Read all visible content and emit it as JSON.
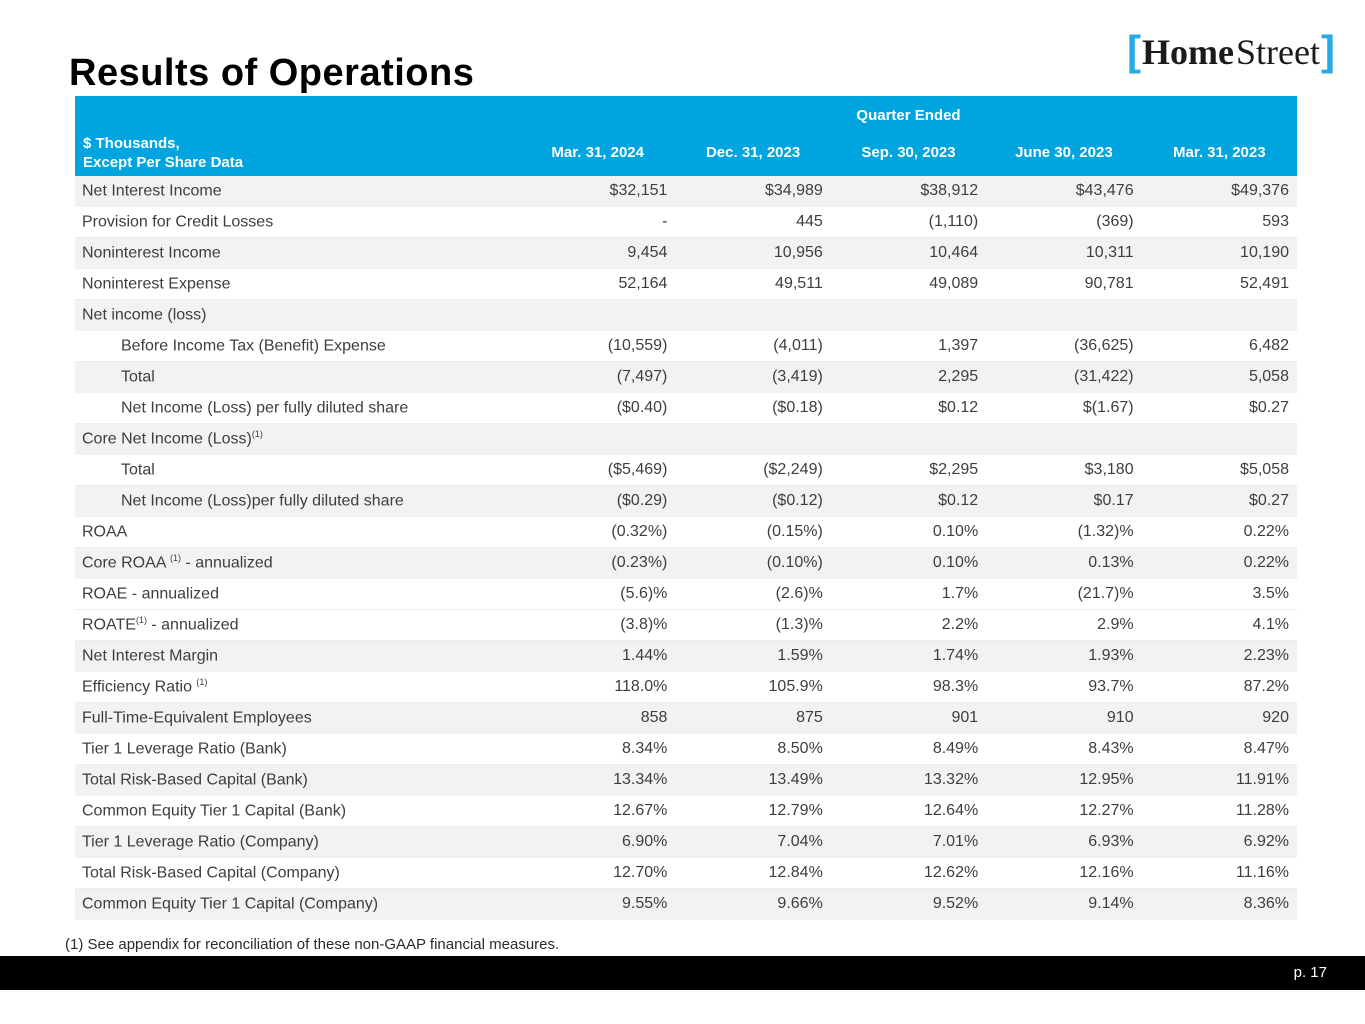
{
  "page": {
    "title": "Results of Operations",
    "footnote": "(1) See appendix for reconciliation of these non-GAAP financial measures.",
    "page_number": "p. 17"
  },
  "logo": {
    "bracket_left": "[",
    "home": "Home",
    "street": "Street",
    "bracket_right": "]"
  },
  "colors": {
    "header_blue": "#00A5E0",
    "logo_cyan": "#29ABE2",
    "row_shade": "#F2F2F2",
    "footer_black": "#000000"
  },
  "table": {
    "group_header": "Quarter Ended",
    "desc_line1": "$ Thousands,",
    "desc_line2": "Except Per Share Data",
    "columns": [
      "Mar. 31, 2024",
      "Dec. 31, 2023",
      "Sep. 30, 2023",
      "June 30, 2023",
      "Mar. 31, 2023"
    ],
    "rows": [
      {
        "label": "Net Interest Income",
        "shaded": true,
        "indent": false,
        "values": [
          "$32,151",
          "$34,989",
          "$38,912",
          "$43,476",
          "$49,376"
        ]
      },
      {
        "label": "Provision for Credit Losses",
        "shaded": false,
        "indent": false,
        "values": [
          "-",
          "445",
          "(1,110)",
          "(369)",
          "593"
        ]
      },
      {
        "label": "Noninterest Income",
        "shaded": true,
        "indent": false,
        "values": [
          "9,454",
          "10,956",
          "10,464",
          "10,311",
          "10,190"
        ]
      },
      {
        "label": "Noninterest Expense",
        "shaded": false,
        "indent": false,
        "values": [
          "52,164",
          "49,511",
          "49,089",
          "90,781",
          "52,491"
        ]
      },
      {
        "label": "Net income (loss)",
        "shaded": true,
        "indent": false,
        "values": [
          "",
          "",
          "",
          "",
          ""
        ]
      },
      {
        "label": "Before Income Tax (Benefit) Expense",
        "shaded": false,
        "indent": true,
        "values": [
          "(10,559)",
          "(4,011)",
          "1,397",
          "(36,625)",
          "6,482"
        ]
      },
      {
        "label": "Total",
        "shaded": true,
        "indent": true,
        "values": [
          "(7,497)",
          "(3,419)",
          "2,295",
          "(31,422)",
          "5,058"
        ]
      },
      {
        "label": "Net Income (Loss) per fully diluted share",
        "shaded": false,
        "indent": true,
        "values": [
          "($0.40)",
          "($0.18)",
          "$0.12",
          "$(1.67)",
          "$0.27"
        ]
      },
      {
        "label": "Core Net Income (Loss)",
        "sup": "(1)",
        "shaded": true,
        "indent": false,
        "values": [
          "",
          "",
          "",
          "",
          ""
        ]
      },
      {
        "label": "Total",
        "shaded": false,
        "indent": true,
        "values": [
          "($5,469)",
          "($2,249)",
          "$2,295",
          "$3,180",
          "$5,058"
        ]
      },
      {
        "label": "Net Income (Loss)per fully diluted share",
        "shaded": true,
        "indent": true,
        "values": [
          "($0.29)",
          "($0.12)",
          "$0.12",
          "$0.17",
          "$0.27"
        ]
      },
      {
        "label": "ROAA",
        "shaded": false,
        "indent": false,
        "values": [
          "(0.32%)",
          "(0.15%)",
          "0.10%",
          "(1.32)%",
          "0.22%"
        ]
      },
      {
        "label": "Core ROAA ",
        "sup": "(1)",
        "suffix": " - annualized",
        "shaded": true,
        "indent": false,
        "values": [
          "(0.23%)",
          "(0.10%)",
          "0.10%",
          "0.13%",
          "0.22%"
        ]
      },
      {
        "label": "ROAE - annualized",
        "shaded": false,
        "indent": false,
        "values": [
          "(5.6)%",
          "(2.6)%",
          "1.7%",
          "(21.7)%",
          "3.5%"
        ]
      },
      {
        "label": "ROATE",
        "sup": "(1)",
        "suffix": " - annualized",
        "shaded": false,
        "indent": false,
        "values": [
          "(3.8)%",
          "(1.3)%",
          "2.2%",
          "2.9%",
          "4.1%"
        ]
      },
      {
        "label": "Net Interest Margin",
        "shaded": true,
        "indent": false,
        "values": [
          "1.44%",
          "1.59%",
          "1.74%",
          "1.93%",
          "2.23%"
        ]
      },
      {
        "label": "Efficiency Ratio ",
        "sup": "(1)",
        "shaded": false,
        "indent": false,
        "values": [
          "118.0%",
          "105.9%",
          "98.3%",
          "93.7%",
          "87.2%"
        ]
      },
      {
        "label": "Full-Time-Equivalent Employees",
        "shaded": true,
        "indent": false,
        "values": [
          "858",
          "875",
          "901",
          "910",
          "920"
        ]
      },
      {
        "label": "Tier 1 Leverage Ratio (Bank)",
        "shaded": false,
        "indent": false,
        "values": [
          "8.34%",
          "8.50%",
          "8.49%",
          "8.43%",
          "8.47%"
        ]
      },
      {
        "label": "Total Risk-Based Capital (Bank)",
        "shaded": true,
        "indent": false,
        "values": [
          "13.34%",
          "13.49%",
          "13.32%",
          "12.95%",
          "11.91%"
        ]
      },
      {
        "label": "Common Equity Tier 1 Capital (Bank)",
        "shaded": false,
        "indent": false,
        "values": [
          "12.67%",
          "12.79%",
          "12.64%",
          "12.27%",
          "11.28%"
        ]
      },
      {
        "label": "Tier 1 Leverage Ratio (Company)",
        "shaded": true,
        "indent": false,
        "values": [
          "6.90%",
          "7.04%",
          "7.01%",
          "6.93%",
          "6.92%"
        ]
      },
      {
        "label": "Total Risk-Based Capital (Company)",
        "shaded": false,
        "indent": false,
        "values": [
          "12.70%",
          "12.84%",
          "12.62%",
          "12.16%",
          "11.16%"
        ]
      },
      {
        "label": "Common Equity Tier 1 Capital (Company)",
        "shaded": true,
        "indent": false,
        "values": [
          "9.55%",
          "9.66%",
          "9.52%",
          "9.14%",
          "8.36%"
        ]
      }
    ]
  }
}
